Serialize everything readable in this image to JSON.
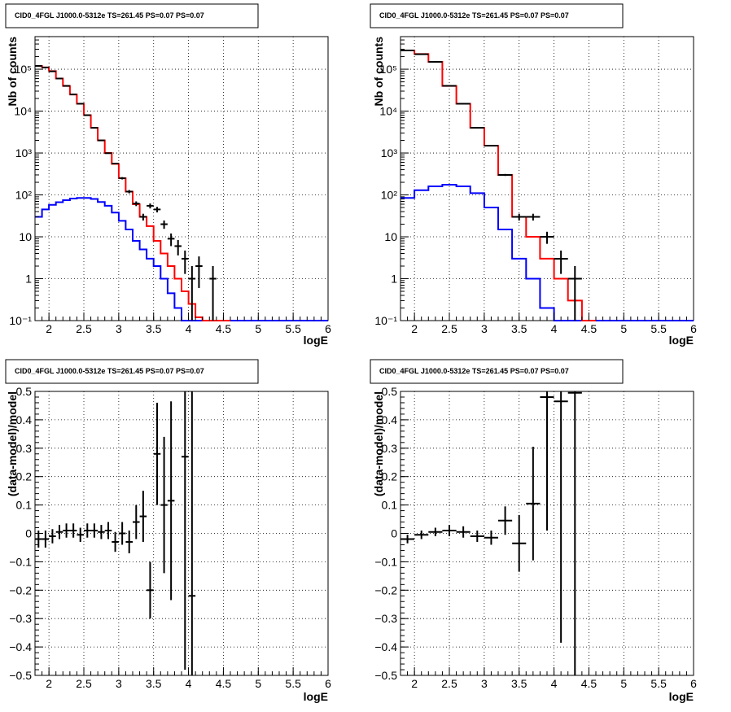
{
  "chart_data": [
    {
      "type": "line",
      "title": "CID0_4FGL J1000.0-5312e TS=261.45 PS=0.07 PS=0.07",
      "xlabel": "logE",
      "ylabel": "Nb of counts",
      "log_y": true,
      "xlim": [
        1.8,
        6.0
      ],
      "ylim": [
        0.1,
        600000
      ],
      "x_ticks": [
        "2",
        "2.5",
        "3",
        "3.5",
        "4",
        "4.5",
        "5",
        "5.5",
        "6"
      ],
      "y_ticks": [
        "10⁻¹",
        "1",
        "10",
        "10²",
        "10³",
        "10⁴",
        "10⁵"
      ],
      "grid": true,
      "series": [
        {
          "color": "#0000ff",
          "style": "histogram",
          "bin_edges": [
            1.8,
            1.9,
            2.0,
            2.1,
            2.2,
            2.3,
            2.4,
            2.5,
            2.6,
            2.7,
            2.8,
            2.9,
            3.0,
            3.1,
            3.2,
            3.3,
            3.4,
            3.5,
            3.6,
            3.7,
            3.8,
            3.9,
            4.0,
            4.1,
            4.2,
            4.3,
            4.4,
            4.5,
            4.6,
            4.7,
            4.8,
            4.9,
            5.0,
            5.1,
            5.2,
            5.3,
            5.4,
            5.5,
            5.6,
            5.7,
            5.8,
            5.9,
            6.0
          ],
          "values": [
            30,
            45,
            58,
            67,
            75,
            82,
            85,
            85,
            80,
            68,
            55,
            38,
            24,
            15,
            8,
            5,
            3,
            2,
            1,
            0.45,
            0.2,
            0.1,
            0.1,
            0.1,
            0.1,
            0.1,
            0.1,
            0.1,
            0.1,
            0.1,
            0.1,
            0.1,
            0.1,
            0.1,
            0.1,
            0.1,
            0.1,
            0.1,
            0.1,
            0.1,
            0.1,
            0.1
          ]
        },
        {
          "color": "#ff0000",
          "style": "histogram",
          "bin_edges": [
            1.8,
            1.9,
            2.0,
            2.1,
            2.2,
            2.3,
            2.4,
            2.5,
            2.6,
            2.7,
            2.8,
            2.9,
            3.0,
            3.1,
            3.2,
            3.3,
            3.4,
            3.5,
            3.6,
            3.7,
            3.8,
            3.9,
            4.0,
            4.1,
            4.2,
            4.3,
            4.4,
            4.5,
            4.6
          ],
          "values": [
            120000,
            110000,
            90000,
            60000,
            40000,
            25000,
            15000,
            8000,
            4000,
            2000,
            1000,
            550,
            250,
            120,
            60,
            30,
            18,
            8,
            4,
            2,
            1,
            0.5,
            0.25,
            0.12,
            0.1,
            0.1,
            0.1,
            0.1
          ]
        },
        {
          "color": "#000000",
          "style": "points",
          "x": [
            1.85,
            1.95,
            2.05,
            2.15,
            2.25,
            2.35,
            2.45,
            2.55,
            2.65,
            2.75,
            2.85,
            2.95,
            3.05,
            3.15,
            3.25,
            3.35,
            3.45,
            3.55,
            3.65,
            3.75,
            3.85,
            3.95,
            4.05,
            4.15,
            4.35
          ],
          "y": [
            120000,
            110000,
            89000,
            60000,
            40000,
            25000,
            15000,
            8000,
            4000,
            2000,
            990,
            560,
            250,
            120,
            62,
            30,
            55,
            45,
            20,
            9,
            6,
            3,
            1,
            2,
            1
          ],
          "y_err": [
            350,
            330,
            300,
            245,
            200,
            158,
            122,
            89,
            63,
            45,
            31,
            24,
            16,
            11,
            8,
            5.5,
            7.4,
            6.7,
            4.5,
            3,
            2.4,
            1.7,
            1,
            1.4,
            1
          ]
        }
      ]
    },
    {
      "type": "line",
      "title": "CID0_4FGL J1000.0-5312e TS=261.45 PS=0.07 PS=0.07",
      "xlabel": "logE",
      "ylabel": "Nb of counts",
      "log_y": true,
      "xlim": [
        1.8,
        6.0
      ],
      "ylim": [
        0.1,
        600000
      ],
      "x_ticks": [
        "2",
        "2.5",
        "3",
        "3.5",
        "4",
        "4.5",
        "5",
        "5.5",
        "6"
      ],
      "y_ticks": [
        "10⁻¹",
        "1",
        "10",
        "10²",
        "10³",
        "10⁴",
        "10⁵"
      ],
      "grid": true,
      "series": [
        {
          "color": "#0000ff",
          "style": "histogram",
          "bin_edges": [
            1.8,
            2.0,
            2.2,
            2.4,
            2.6,
            2.8,
            3.0,
            3.2,
            3.4,
            3.6,
            3.8,
            4.0,
            4.2,
            4.4,
            4.6,
            4.8,
            5.0,
            5.2,
            5.4,
            5.6,
            5.8,
            6.0
          ],
          "values": [
            85,
            130,
            160,
            175,
            160,
            110,
            50,
            15,
            3,
            1,
            0.2,
            0.1,
            0.1,
            0.1,
            0.1,
            0.1,
            0.1,
            0.1,
            0.1,
            0.1,
            0.1
          ]
        },
        {
          "color": "#ff0000",
          "style": "histogram",
          "bin_edges": [
            1.8,
            2.0,
            2.2,
            2.4,
            2.6,
            2.8,
            3.0,
            3.2,
            3.4,
            3.6,
            3.8,
            4.0,
            4.2,
            4.4,
            4.6
          ],
          "values": [
            280000,
            230000,
            150000,
            40000,
            15000,
            4000,
            1500,
            300,
            30,
            10,
            3,
            1,
            0.3,
            0.1
          ]
        },
        {
          "color": "#000000",
          "style": "points",
          "x": [
            1.9,
            2.1,
            2.3,
            2.5,
            2.7,
            2.9,
            3.1,
            3.3,
            3.5,
            3.7,
            3.9,
            4.1,
            4.3
          ],
          "y": [
            280000,
            228000,
            150000,
            40000,
            15000,
            4000,
            1500,
            300,
            30,
            30,
            10,
            3,
            1
          ],
          "y_err": [
            530,
            478,
            387,
            200,
            122,
            63,
            39,
            17,
            5.5,
            5.5,
            3.2,
            1.7,
            1
          ]
        }
      ]
    },
    {
      "type": "scatter",
      "title": "CID0_4FGL J1000.0-5312e TS=261.45 PS=0.07 PS=0.07",
      "xlabel": "logE",
      "ylabel": "(data-model)/model",
      "xlim": [
        1.8,
        6.0
      ],
      "ylim": [
        -0.5,
        0.5
      ],
      "x_ticks": [
        "2",
        "2.5",
        "3",
        "3.5",
        "4",
        "4.5",
        "5",
        "5.5",
        "6"
      ],
      "y_ticks": [
        "−0.5",
        "−0.4",
        "−0.3",
        "−0.2",
        "−0.1",
        "0",
        "0.1",
        "0.2",
        "0.3",
        "0.4",
        "0.5"
      ],
      "grid": true,
      "x": [
        1.85,
        1.95,
        2.05,
        2.15,
        2.25,
        2.35,
        2.45,
        2.55,
        2.65,
        2.75,
        2.85,
        2.95,
        3.05,
        3.15,
        3.25,
        3.35,
        3.45,
        3.55,
        3.65,
        3.75,
        3.95,
        4.05
      ],
      "y": [
        -0.02,
        -0.02,
        -0.01,
        0.005,
        0.01,
        0.01,
        -0.005,
        0.01,
        0.01,
        0.005,
        0.01,
        -0.03,
        0.0,
        -0.03,
        0.04,
        0.06,
        -0.2,
        0.28,
        0.1,
        0.115,
        0.27,
        -0.22
      ],
      "y_err": [
        0.03,
        0.03,
        0.025,
        0.025,
        0.025,
        0.025,
        0.025,
        0.025,
        0.025,
        0.025,
        0.03,
        0.035,
        0.04,
        0.04,
        0.06,
        0.09,
        0.1,
        0.18,
        0.24,
        0.35,
        0.75,
        0.75
      ],
      "x_err": 0.05
    },
    {
      "type": "scatter",
      "title": "CID0_4FGL J1000.0-5312e TS=261.45 PS=0.07 PS=0.07",
      "xlabel": "logE",
      "ylabel": "(data-model)/model",
      "xlim": [
        1.8,
        6.0
      ],
      "ylim": [
        -0.5,
        0.5
      ],
      "x_ticks": [
        "2",
        "2.5",
        "3",
        "3.5",
        "4",
        "4.5",
        "5",
        "5.5",
        "6"
      ],
      "y_ticks": [
        "−0.5",
        "−0.4",
        "−0.3",
        "−0.2",
        "−0.1",
        "0",
        "0.1",
        "0.2",
        "0.3",
        "0.4",
        "0.5"
      ],
      "grid": true,
      "x": [
        1.9,
        2.1,
        2.3,
        2.5,
        2.7,
        2.9,
        3.1,
        3.3,
        3.5,
        3.7,
        3.9,
        4.1,
        4.3
      ],
      "y": [
        -0.02,
        -0.005,
        0.005,
        0.01,
        0.005,
        -0.01,
        -0.015,
        0.045,
        -0.035,
        0.105,
        0.48,
        0.465,
        0.495
      ],
      "y_err": [
        0.015,
        0.015,
        0.015,
        0.02,
        0.02,
        0.02,
        0.025,
        0.05,
        0.1,
        0.2,
        0.47,
        0.85,
        1.0
      ],
      "x_err": 0.1
    }
  ]
}
